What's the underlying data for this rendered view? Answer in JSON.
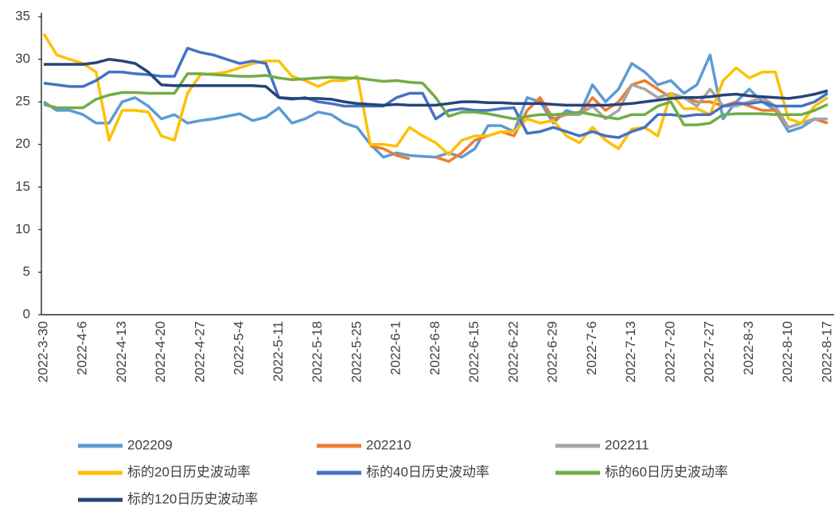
{
  "chart_data": {
    "type": "line",
    "categories": [
      "2022-3-30",
      null,
      null,
      "2022-4-6",
      null,
      null,
      "2022-4-13",
      null,
      null,
      "2022-4-20",
      null,
      null,
      "2022-4-27",
      null,
      null,
      "2022-5-4",
      null,
      null,
      "2022-5-11",
      null,
      null,
      "2022-5-18",
      null,
      null,
      "2022-5-25",
      null,
      null,
      "2022-6-1",
      null,
      null,
      "2022-6-8",
      null,
      null,
      "2022-6-15",
      null,
      null,
      "2022-6-22",
      null,
      null,
      "2022-6-29",
      null,
      null,
      "2022-7-6",
      null,
      null,
      "2022-7-13",
      null,
      null,
      "2022-7-20",
      null,
      null,
      "2022-7-27",
      null,
      null,
      "2022-8-3",
      null,
      null,
      "2022-8-10",
      null,
      null,
      "2022-8-17"
    ],
    "ylim": [
      0,
      35
    ],
    "yticks": [
      0,
      5,
      10,
      15,
      20,
      25,
      30,
      35
    ],
    "series": [
      {
        "name": "202209",
        "color": "#5b9bd5",
        "values": [
          25,
          24,
          24,
          23.5,
          22.5,
          22.5,
          25,
          25.5,
          24.5,
          23,
          23.5,
          22.5,
          22.8,
          23,
          23.3,
          23.6,
          22.8,
          23.2,
          24.3,
          22.5,
          23,
          23.8,
          23.5,
          22.5,
          22,
          20,
          18.5,
          19,
          18.7,
          18.6,
          18.5,
          19,
          18.5,
          19.5,
          22.2,
          22.2,
          21.5,
          25.5,
          25,
          22.5,
          24,
          23.5,
          27,
          25,
          26.5,
          29.5,
          28.5,
          27,
          27.5,
          26,
          27,
          30.5,
          23,
          25,
          26.5,
          25,
          24,
          21.5,
          22,
          23,
          22.5
        ]
      },
      {
        "name": "202210",
        "color": "#ed7d31",
        "values": [
          null,
          null,
          null,
          null,
          null,
          null,
          null,
          null,
          null,
          null,
          null,
          null,
          null,
          null,
          null,
          null,
          null,
          null,
          null,
          null,
          null,
          null,
          null,
          null,
          null,
          19.8,
          19.5,
          18.7,
          18.3,
          null,
          18.5,
          18,
          19,
          20.5,
          21,
          21.5,
          21,
          24,
          25.5,
          23,
          23.5,
          23.5,
          25.5,
          24,
          25,
          27,
          27.5,
          26.5,
          25.5,
          25.5,
          25,
          25,
          24.5,
          25,
          24.5,
          24,
          24,
          22,
          22.5,
          23,
          22.5
        ]
      },
      {
        "name": "202211",
        "color": "#a5a5a5",
        "values": [
          null,
          null,
          null,
          null,
          null,
          null,
          null,
          null,
          null,
          null,
          null,
          null,
          null,
          null,
          null,
          null,
          null,
          null,
          null,
          null,
          null,
          null,
          null,
          null,
          null,
          null,
          null,
          null,
          null,
          null,
          null,
          null,
          null,
          null,
          null,
          null,
          null,
          null,
          null,
          23.5,
          23.5,
          23.5,
          24.5,
          23,
          24,
          27,
          26.5,
          25.5,
          26,
          25.5,
          24.5,
          26.5,
          24.5,
          24.5,
          25,
          25.5,
          24.5,
          22,
          22.5,
          23,
          23
        ]
      },
      {
        "name": "标的20日历史波动率",
        "color": "#ffc000",
        "values": [
          33,
          30.5,
          30,
          29.5,
          28.5,
          20.5,
          24,
          24,
          23.8,
          21,
          20.5,
          26,
          28.2,
          28.3,
          28.5,
          29,
          29.5,
          29.8,
          29.8,
          28,
          27.5,
          26.8,
          27.5,
          27.5,
          28,
          20,
          20,
          19.8,
          22,
          21,
          20.2,
          18.8,
          20.5,
          21,
          21,
          21.5,
          21.5,
          23,
          22.5,
          22.8,
          21,
          20.2,
          22,
          20.5,
          19.5,
          21.8,
          22,
          21,
          26,
          24.2,
          24.2,
          23.5,
          27.5,
          29,
          27.8,
          28.5,
          28.5,
          23,
          22.5,
          24.5,
          25.5
        ]
      },
      {
        "name": "标的40日历史波动率",
        "color": "#4472c4",
        "values": [
          27.2,
          27,
          26.8,
          26.8,
          27.5,
          28.5,
          28.5,
          28.3,
          28.2,
          28,
          28,
          31.3,
          30.8,
          30.5,
          30,
          29.5,
          29.8,
          29.5,
          25.5,
          25.3,
          25.5,
          25,
          24.8,
          24.5,
          24.5,
          24.5,
          24.5,
          25.5,
          26,
          26,
          23,
          24,
          24.2,
          24,
          24,
          24.2,
          24.3,
          21.3,
          21.5,
          22,
          21.5,
          21,
          21.5,
          21,
          20.8,
          21.5,
          22,
          23.5,
          23.5,
          23.3,
          23.5,
          23.5,
          24.5,
          24.8,
          24.8,
          25,
          24.5,
          24.5,
          24.5,
          25,
          26
        ]
      },
      {
        "name": "标的60日历史波动率",
        "color": "#70ad47",
        "values": [
          24.7,
          24.3,
          24.3,
          24.3,
          25.3,
          25.8,
          26.1,
          26.1,
          26,
          26,
          26,
          28.3,
          28.3,
          28.2,
          28.1,
          28,
          28,
          28.1,
          27.8,
          27.6,
          27.7,
          27.8,
          27.9,
          27.8,
          27.8,
          27.6,
          27.4,
          27.5,
          27.3,
          27.2,
          25.5,
          23.3,
          23.8,
          23.8,
          23.6,
          23.3,
          23,
          23.3,
          23.5,
          23.5,
          23.6,
          23.8,
          23.5,
          23.2,
          23,
          23.5,
          23.5,
          24.5,
          25,
          22.3,
          22.3,
          22.5,
          23.5,
          23.6,
          23.6,
          23.6,
          23.5,
          23.5,
          23.5,
          24,
          24.7
        ]
      },
      {
        "name": "标的120日历史波动率",
        "color": "#264478",
        "values": [
          29.4,
          29.4,
          29.4,
          29.4,
          29.6,
          30,
          29.8,
          29.5,
          28.5,
          27,
          26.9,
          26.9,
          26.9,
          26.9,
          26.9,
          26.9,
          26.9,
          26.8,
          25.5,
          25.4,
          25.4,
          25.4,
          25.3,
          25,
          24.8,
          24.7,
          24.6,
          24.7,
          24.6,
          24.6,
          24.6,
          24.8,
          25,
          25,
          24.9,
          24.9,
          24.8,
          24.8,
          24.8,
          24.7,
          24.6,
          24.6,
          24.6,
          24.6,
          24.7,
          24.8,
          25,
          25.2,
          25.4,
          25.5,
          25.5,
          25.6,
          25.8,
          25.9,
          25.7,
          25.6,
          25.5,
          25.4,
          25.6,
          25.9,
          26.3
        ]
      }
    ]
  }
}
